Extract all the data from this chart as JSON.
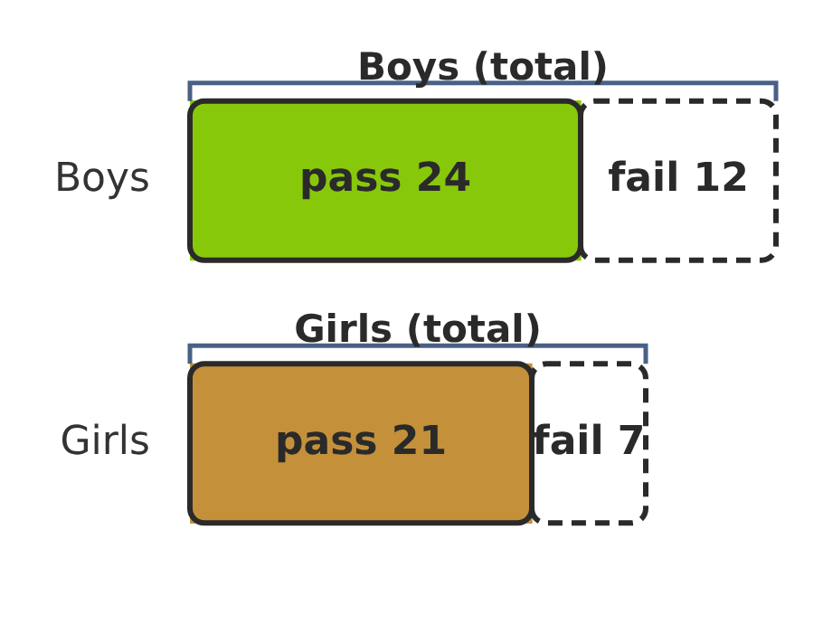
{
  "chart_data": {
    "type": "bar",
    "orientation": "horizontal",
    "stacked": true,
    "categories": [
      "Boys",
      "Girls"
    ],
    "series": [
      {
        "name": "pass",
        "colors": [
          "#88c80a",
          "#c4913a"
        ],
        "values": [
          24,
          21
        ]
      },
      {
        "name": "fail",
        "color": "#2a2a2a",
        "line_style": "dashed",
        "values": [
          12,
          7
        ]
      }
    ],
    "data_labels": true,
    "legend": false,
    "grid": false,
    "annotations": [
      "Boys (total)",
      "Girls (total)"
    ]
  }
}
